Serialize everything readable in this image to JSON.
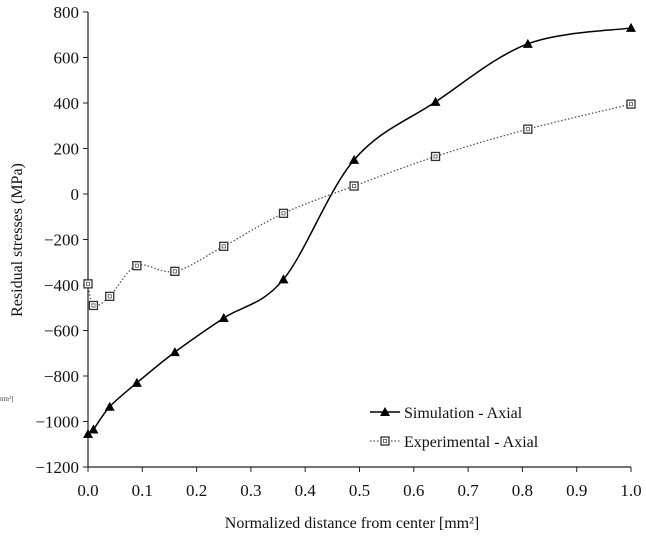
{
  "chart_data": {
    "type": "line",
    "title": "",
    "xlabel": "Normalized distance from center [mm²]",
    "ylabel": "Residual stresses (MPa)",
    "xlim": [
      0.0,
      1.0
    ],
    "ylim": [
      -1200,
      800
    ],
    "xticks": [
      "0.0",
      "0.1",
      "0.2",
      "0.3",
      "0.4",
      "0.5",
      "0.6",
      "0.7",
      "0.8",
      "0.9",
      "1.0"
    ],
    "yticks": [
      "800",
      "600",
      "400",
      "200",
      "0",
      "−200",
      "−400",
      "−600",
      "−800",
      "−1000",
      "−1200"
    ],
    "grid": false,
    "legend_position": "bottom-right",
    "stray_label": "nm²]",
    "series": [
      {
        "name": "Simulation - Axial",
        "marker": "triangle",
        "line_style": "solid",
        "color": "#000000",
        "x": [
          0.0,
          0.01,
          0.04,
          0.09,
          0.16,
          0.25,
          0.36,
          0.49,
          0.64,
          0.81,
          1.0
        ],
        "y": [
          -1055,
          -1035,
          -935,
          -830,
          -695,
          -545,
          -375,
          150,
          405,
          660,
          730
        ]
      },
      {
        "name": "Experimental - Axial",
        "marker": "square",
        "line_style": "dotted",
        "color": "#555555",
        "x": [
          0.0,
          0.01,
          0.04,
          0.09,
          0.16,
          0.25,
          0.36,
          0.49,
          0.64,
          0.81,
          1.0
        ],
        "y": [
          -395,
          -490,
          -450,
          -315,
          -340,
          -230,
          -85,
          35,
          165,
          285,
          395
        ]
      }
    ]
  }
}
